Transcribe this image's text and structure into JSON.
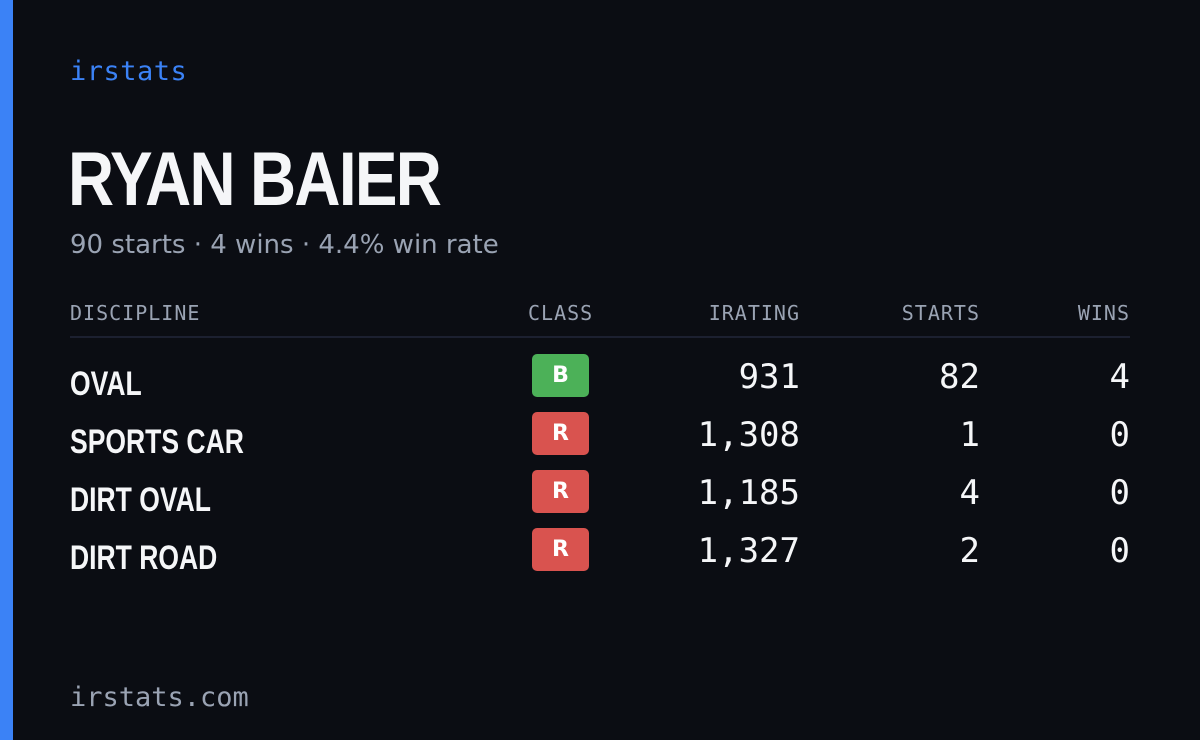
{
  "brand": "irstats",
  "driver": {
    "name": "RYAN BAIER",
    "summary": "90 starts · 4 wins · 4.4% win rate"
  },
  "table": {
    "headers": {
      "discipline": "DISCIPLINE",
      "class": "CLASS",
      "irating": "IRATING",
      "starts": "STARTS",
      "wins": "WINS"
    },
    "rows": [
      {
        "discipline": "OVAL",
        "class": "B",
        "class_color": "#4cb158",
        "irating": "931",
        "starts": "82",
        "wins": "4"
      },
      {
        "discipline": "SPORTS CAR",
        "class": "R",
        "class_color": "#d9534f",
        "irating": "1,308",
        "starts": "1",
        "wins": "0"
      },
      {
        "discipline": "DIRT OVAL",
        "class": "R",
        "class_color": "#d9534f",
        "irating": "1,185",
        "starts": "4",
        "wins": "0"
      },
      {
        "discipline": "DIRT ROAD",
        "class": "R",
        "class_color": "#d9534f",
        "irating": "1,327",
        "starts": "2",
        "wins": "0"
      }
    ]
  },
  "footer": "irstats.com",
  "colors": {
    "background": "#0b0d13",
    "accent": "#3b82f6",
    "muted_text": "#9aa3b3"
  }
}
